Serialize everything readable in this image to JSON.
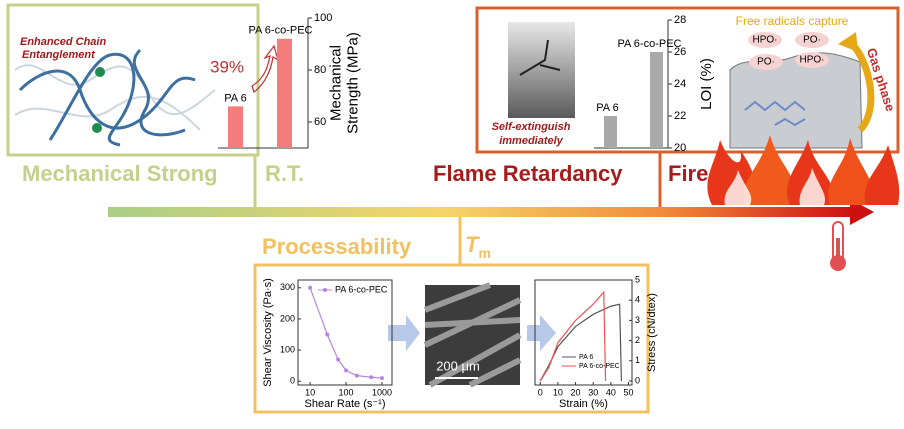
{
  "mechanical": {
    "annotation": [
      "Enhanced Chain",
      "Entanglement"
    ],
    "chart": {
      "type": "bar",
      "categories": [
        "PA 6",
        "PA 6-co-PEC"
      ],
      "values": [
        66,
        92
      ],
      "color": "#f47c7c",
      "ylim": [
        50,
        100
      ],
      "yticks": [
        60,
        80,
        100
      ],
      "y_label": [
        "Mechanical",
        "Strength (MPa)"
      ],
      "increase_label": "39%"
    },
    "label": "Mechanical Strong",
    "condition": "R.T."
  },
  "flame": {
    "photo_caption": [
      "Self-extinguish",
      "immediately"
    ],
    "chart": {
      "type": "bar",
      "categories": [
        "PA 6",
        "PA 6-co-PEC"
      ],
      "values": [
        22,
        26
      ],
      "color": "#a9a9a9",
      "ylim": [
        20,
        28
      ],
      "yticks": [
        20,
        22,
        24,
        26,
        28
      ],
      "y_label": [
        "LOI (%)"
      ]
    },
    "mechanism": {
      "title": "Free radicals capture",
      "radicals": [
        "HPO·",
        "PO·",
        "PO·",
        "HPO·"
      ],
      "phase": "Gas phase"
    },
    "label": "Flame Retardancy",
    "condition": "Fire"
  },
  "processing": {
    "label": "Processability",
    "condition": {
      "symbol": "T",
      "subscript": "m"
    },
    "viscosity": {
      "type": "line",
      "x": [
        10,
        30,
        60,
        100,
        200,
        500,
        1000
      ],
      "series": [
        {
          "name": "PA 6-co-PEC",
          "color": "#b784e0",
          "values": [
            300,
            150,
            70,
            35,
            18,
            13,
            10
          ]
        }
      ],
      "xscale": "log",
      "xlim": [
        4.6,
        1900
      ],
      "ylim": [
        -12,
        325
      ],
      "xticks": [
        10,
        100,
        1000
      ],
      "yticks": [
        0,
        100,
        200,
        300
      ],
      "x_label": "Shear Rate (s⁻¹)",
      "y_label": "Shear Viscosity (Pa·s)"
    },
    "sem": {
      "scale_bar": "200 μm"
    },
    "tensile": {
      "type": "line",
      "series": [
        {
          "name": "PA 6",
          "color": "#555555",
          "x": [
            0,
            5,
            10,
            20,
            30,
            40,
            45,
            46
          ],
          "values": [
            0,
            0.8,
            1.7,
            2.7,
            3.3,
            3.7,
            3.8,
            0
          ]
        },
        {
          "name": "PA 6-co-PEC",
          "color": "#f05050",
          "x": [
            0,
            5,
            10,
            20,
            30,
            36,
            37
          ],
          "values": [
            0,
            0.7,
            1.9,
            3.0,
            3.8,
            4.4,
            0
          ]
        }
      ],
      "xlim": [
        -3,
        52
      ],
      "ylim": [
        -0.2,
        5
      ],
      "xticks": [
        0,
        10,
        20,
        30,
        40,
        50
      ],
      "yticks": [
        0,
        1,
        2,
        3,
        4,
        5
      ],
      "x_label": "Strain (%)",
      "y_label": "Stress (cN/dtex)"
    }
  }
}
